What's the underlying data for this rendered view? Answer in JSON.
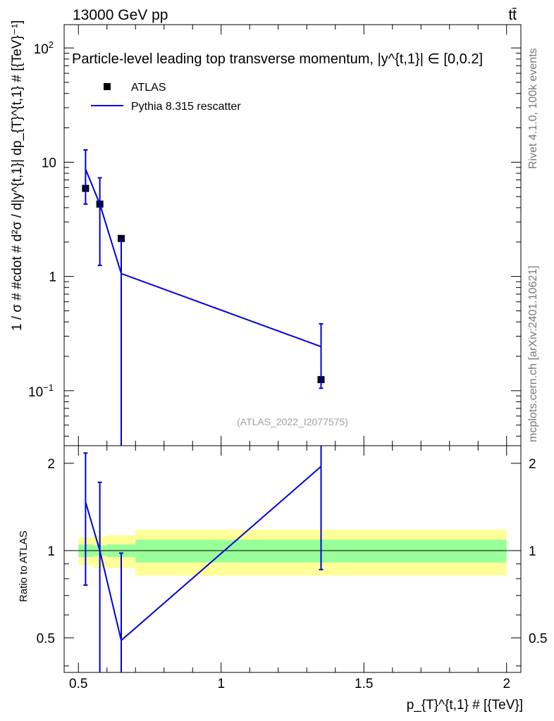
{
  "header": {
    "left_text": "13000 GeV pp",
    "right_text": "tt̄"
  },
  "side_labels": {
    "rivet": "Rivet 4.1.0,  100k events",
    "source": "mcplots.cern.ch [arXiv:2401.10621]"
  },
  "chart_data": [
    {
      "type": "scatter",
      "panel": "main",
      "title": "Particle-level leading top transverse momentum, |y^{t,1}| ∈ [0,0.2]",
      "watermark": "(ATLAS_2022_I2077575)",
      "ylabel": "1 / σ # #cdot # d²σ / d|y^{t,1}| dp_{T}^{t,1} # [{TeV}⁻¹]",
      "xlim": [
        0.45,
        2.05
      ],
      "ylim": [
        0.033,
        160
      ],
      "yscale": "log",
      "yticks": [
        {
          "value": 100,
          "base": "10",
          "exp": "2"
        },
        {
          "value": 10,
          "label": "10"
        },
        {
          "value": 1,
          "label": "1"
        },
        {
          "value": 0.1,
          "base": "10",
          "exp": "−1"
        }
      ],
      "legend_position": "top-left",
      "series": [
        {
          "name": "ATLAS",
          "kind": "markers",
          "color": "#000000",
          "x": [
            0.525,
            0.575,
            0.65,
            1.35
          ],
          "xerr": [
            0.025,
            0.025,
            0.05,
            0.65
          ],
          "y": [
            5.9,
            4.3,
            2.15,
            0.125
          ]
        },
        {
          "name": "Pythia 8.315 rescatter",
          "kind": "line",
          "color": "#0000dd",
          "x": [
            0.525,
            0.575,
            0.65,
            1.35
          ],
          "y": [
            8.7,
            4.3,
            1.06,
            0.243
          ],
          "yerr_low": [
            4.3,
            1.25,
            0.001,
            0.105
          ],
          "yerr_high": [
            12.8,
            7.3,
            2.1,
            0.385
          ]
        }
      ]
    },
    {
      "type": "line",
      "panel": "ratio",
      "ylabel": "Ratio to ATLAS",
      "xlabel": "p_{T}^{t,1} # [{TeV}]",
      "xlim": [
        0.45,
        2.05
      ],
      "ylim": [
        0.38,
        2.3
      ],
      "yscale": "log",
      "xticks": [
        {
          "value": 0.5,
          "label": "0.5"
        },
        {
          "value": 1,
          "label": "1"
        },
        {
          "value": 1.5,
          "label": "1.5"
        },
        {
          "value": 2,
          "label": "2"
        }
      ],
      "yticks": [
        {
          "value": 0.5,
          "label": "0.5"
        },
        {
          "value": 1,
          "label": "1"
        },
        {
          "value": 2,
          "label": "2"
        }
      ],
      "bands": {
        "edges": [
          0.5,
          0.55,
          0.6,
          0.7,
          2.0
        ],
        "inner_low": [
          0.95,
          0.96,
          0.95,
          0.91
        ],
        "inner_high": [
          1.05,
          1.04,
          1.05,
          1.09
        ],
        "outer_low": [
          0.89,
          0.87,
          0.87,
          0.82
        ],
        "outer_high": [
          1.11,
          1.12,
          1.13,
          1.18
        ],
        "inner_color": "#99ff99",
        "outer_color": "#ffff99"
      },
      "series": [
        {
          "name": "Pythia 8.315 rescatter",
          "color": "#0000dd",
          "x": [
            0.525,
            0.575,
            0.65,
            1.35
          ],
          "y": [
            1.47,
            1.0,
            0.49,
            1.95
          ],
          "yerr_low": [
            0.76,
            0.3,
            0.3,
            0.86
          ],
          "yerr_high": [
            2.17,
            1.72,
            0.98,
            2.4
          ]
        }
      ]
    }
  ]
}
